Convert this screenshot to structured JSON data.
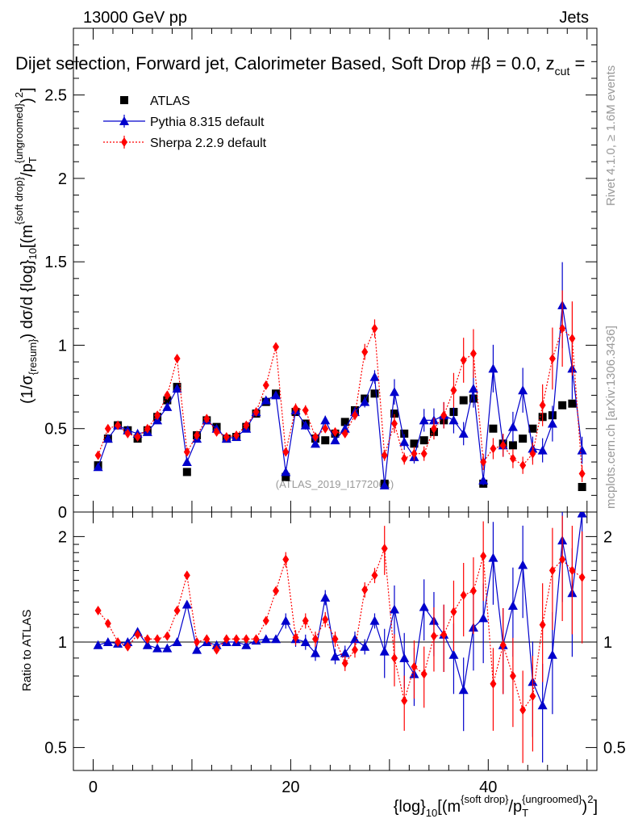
{
  "header": {
    "energy_label": "13000 GeV pp",
    "category_label": "Jets"
  },
  "title": {
    "pre": "Dijet selection, Forward jet, Calorimeter Based, Soft Drop #",
    "beta_part": "β = 0.0, z",
    "cut_sub": "cut",
    "eq": " ="
  },
  "side_labels": {
    "rivet": "Rivet 4.1.0, ≥ 1.6M events",
    "mcplots": "mcplots.cern.ch [arXiv:1306.3436]"
  },
  "watermark": "(ATLAS_2019_I1772062)",
  "legend": [
    {
      "name": "ATLAS",
      "color": "#000000",
      "marker": "square",
      "line": "none"
    },
    {
      "name": "Pythia 8.315 default",
      "color": "#0000cc",
      "marker": "triangle",
      "line": "solid"
    },
    {
      "name": "Sherpa 2.2.9 default",
      "color": "#ff0000",
      "marker": "diamond",
      "line": "dotted"
    }
  ],
  "main_ylabel": {
    "p1": "(1/σ",
    "p1_sub": "{resum}",
    "p2": ") dσ/d {log}",
    "p2_sub": "10",
    "p3": "[(m",
    "p3_sup": "{soft drop}",
    "p4": "/p",
    "p4_sub": "T",
    "p4_sup": "{ungroomed}",
    "p5": ")",
    "p5_sup": "2",
    "p6": "]"
  },
  "ratio_ylabel": "Ratio to ATLAS",
  "xlabel": {
    "p1": "{log}",
    "p1_sub": "10",
    "p2": "[(m",
    "p2_sup": "{soft drop}",
    "p3": "/p",
    "p3_sub": "T",
    "p3_sup": "{ungroomed}",
    "p4": ")",
    "p4_sup": "2",
    "p5": "]"
  },
  "chart_data": {
    "type": "scatter",
    "x": [
      0.5,
      1.5,
      2.5,
      3.5,
      4.5,
      5.5,
      6.5,
      7.5,
      8.5,
      9.5,
      10.5,
      11.5,
      12.5,
      13.5,
      14.5,
      15.5,
      16.5,
      17.5,
      18.5,
      19.5,
      20.5,
      21.5,
      22.5,
      23.5,
      24.5,
      25.5,
      26.5,
      27.5,
      28.5,
      29.5,
      30.5,
      31.5,
      32.5,
      33.5,
      34.5,
      35.5,
      36.5,
      37.5,
      38.5,
      39.5,
      40.5,
      41.5,
      42.5,
      43.5,
      44.5,
      45.5,
      46.5,
      47.5,
      48.5,
      49.5
    ],
    "xlim": [
      -2,
      51
    ],
    "main_panel": {
      "ylim": [
        0,
        2.9
      ],
      "yticks": [
        0,
        0.5,
        1,
        1.5,
        2,
        2.5
      ],
      "ytick_labels": [
        "0",
        "0.5",
        "1",
        "1.5",
        "2",
        "2.5"
      ],
      "series": [
        {
          "name": "ATLAS",
          "values": [
            0.28,
            0.44,
            0.52,
            0.49,
            0.44,
            0.49,
            0.57,
            0.67,
            0.75,
            0.24,
            0.46,
            0.55,
            0.51,
            0.44,
            0.45,
            0.51,
            0.59,
            0.66,
            0.71,
            0.21,
            0.6,
            0.53,
            0.44,
            0.43,
            0.47,
            0.54,
            0.61,
            0.68,
            0.71,
            0.17,
            0.59,
            0.47,
            0.41,
            0.43,
            0.48,
            0.55,
            0.6,
            0.67,
            0.68,
            0.17,
            0.5,
            0.41,
            0.4,
            0.44,
            0.5,
            0.57,
            0.58,
            0.64,
            0.65,
            0.15
          ]
        },
        {
          "name": "Pythia 8.315 default",
          "values": [
            0.27,
            0.44,
            0.52,
            0.49,
            0.47,
            0.48,
            0.55,
            0.63,
            0.74,
            0.3,
            0.44,
            0.55,
            0.5,
            0.44,
            0.45,
            0.5,
            0.6,
            0.67,
            0.7,
            0.24,
            0.61,
            0.52,
            0.41,
            0.55,
            0.43,
            0.5,
            0.6,
            0.66,
            0.81,
            0.16,
            0.72,
            0.42,
            0.33,
            0.55,
            0.55,
            0.58,
            0.55,
            0.47,
            0.74,
            0.19,
            0.86,
            0.4,
            0.51,
            0.73,
            0.38,
            0.37,
            0.53,
            1.24,
            0.86,
            0.37
          ]
        },
        {
          "name": "Sherpa 2.2.9 default",
          "values": [
            0.34,
            0.5,
            0.52,
            0.47,
            0.45,
            0.5,
            0.58,
            0.7,
            0.92,
            0.36,
            0.46,
            0.56,
            0.48,
            0.45,
            0.46,
            0.52,
            0.6,
            0.76,
            0.99,
            0.36,
            0.62,
            0.61,
            0.45,
            0.5,
            0.48,
            0.47,
            0.58,
            0.96,
            1.1,
            0.34,
            0.53,
            0.32,
            0.35,
            0.35,
            0.5,
            0.58,
            0.73,
            0.91,
            0.95,
            0.3,
            0.38,
            0.4,
            0.32,
            0.28,
            0.35,
            0.64,
            0.92,
            1.1,
            1.04,
            0.23
          ]
        }
      ]
    },
    "ratio_panel": {
      "ylim": [
        0.43,
        2.35
      ],
      "yscale": "log",
      "yticks": [
        0.5,
        1,
        2
      ],
      "ytick_labels": [
        "0.5",
        "1",
        "2"
      ],
      "reference": 1,
      "series": [
        {
          "name": "Pythia 8.315 default",
          "values": [
            0.98,
            1.0,
            0.99,
            1.0,
            1.07,
            0.98,
            0.96,
            0.96,
            1.0,
            1.28,
            0.95,
            1.0,
            0.98,
            1.0,
            1.0,
            0.98,
            1.01,
            1.02,
            1.02,
            1.15,
            1.02,
            1.0,
            0.93,
            1.34,
            0.91,
            0.93,
            1.02,
            0.97,
            1.15,
            0.94,
            1.24,
            0.9,
            0.81,
            1.26,
            1.15,
            1.05,
            0.92,
            0.73,
            1.1,
            1.17,
            1.74,
            0.98,
            1.27,
            1.66,
            0.77,
            0.66,
            0.92,
            1.95,
            1.38,
            2.33
          ]
        },
        {
          "name": "Sherpa 2.2.9 default",
          "values": [
            1.23,
            1.13,
            1.0,
            0.97,
            1.05,
            1.02,
            1.02,
            1.04,
            1.23,
            1.55,
            1.0,
            1.02,
            0.95,
            1.02,
            1.02,
            1.02,
            1.02,
            1.15,
            1.4,
            1.72,
            1.03,
            1.15,
            1.02,
            1.16,
            1.02,
            0.87,
            0.95,
            1.41,
            1.55,
            1.85,
            0.9,
            0.68,
            0.85,
            0.81,
            1.04,
            1.05,
            1.22,
            1.36,
            1.4,
            1.76,
            0.76,
            0.98,
            0.8,
            0.64,
            0.7,
            1.12,
            1.6,
            1.72,
            1.6,
            1.53
          ]
        }
      ]
    },
    "xticks": [
      0,
      20,
      40
    ],
    "xtick_labels": [
      "0",
      "20",
      "40"
    ]
  }
}
